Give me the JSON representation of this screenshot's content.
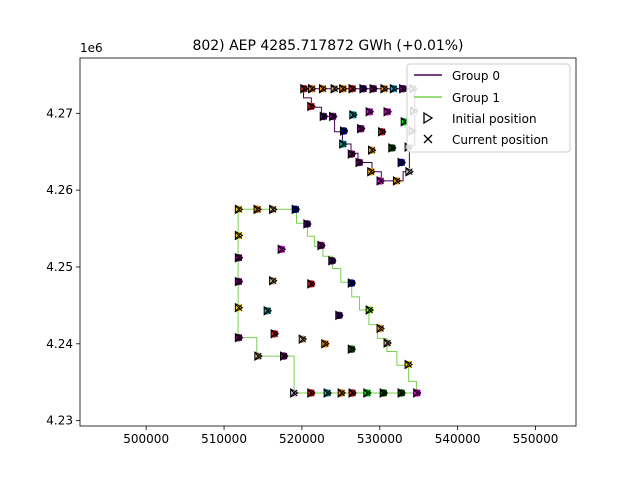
{
  "figure": {
    "title": "802) AEP 4285.717872 GWh (+0.01%)",
    "y_offset_label": "1e6"
  },
  "legend": {
    "placement": "top-right",
    "entries": [
      {
        "label": "Group 0",
        "kind": "line",
        "color": "#440154"
      },
      {
        "label": "Group 1",
        "kind": "line",
        "color": "#7ad151"
      },
      {
        "label": "Initial position",
        "kind": "marker-triangle",
        "color": "#000000"
      },
      {
        "label": "Current position",
        "kind": "marker-x",
        "color": "#000000"
      }
    ]
  },
  "chart_data": {
    "type": "scatter",
    "title": "802) AEP 4285.717872 GWh (+0.01%)",
    "xlabel": "",
    "ylabel": "",
    "xlim": [
      491500,
      555200
    ],
    "ylim": [
      4229300,
      4277200
    ],
    "x_ticks": [
      500000,
      510000,
      520000,
      530000,
      540000,
      550000
    ],
    "x_tick_labels": [
      "500000",
      "510000",
      "520000",
      "530000",
      "540000",
      "550000"
    ],
    "y_ticks": [
      4230000,
      4240000,
      4250000,
      4260000,
      4270000
    ],
    "y_tick_labels": [
      "4.23",
      "4.24",
      "4.25",
      "4.26",
      "4.27"
    ],
    "y_tick_multiplier": "1e6",
    "grid": false,
    "series": [
      {
        "name": "Group 0",
        "kind": "boundary-line",
        "color": "#440154",
        "points": [
          [
            520200,
            4273200
          ],
          [
            534500,
            4273200
          ],
          [
            534500,
            4265800
          ],
          [
            533800,
            4265800
          ],
          [
            533800,
            4262400
          ],
          [
            533000,
            4262400
          ],
          [
            533000,
            4261200
          ],
          [
            530200,
            4261200
          ],
          [
            530200,
            4262400
          ],
          [
            529000,
            4262400
          ],
          [
            529000,
            4263600
          ],
          [
            527200,
            4263600
          ],
          [
            527200,
            4264800
          ],
          [
            526300,
            4264800
          ],
          [
            526300,
            4266000
          ],
          [
            525200,
            4266000
          ],
          [
            525200,
            4267600
          ],
          [
            524200,
            4267600
          ],
          [
            524200,
            4269600
          ],
          [
            522500,
            4269600
          ],
          [
            522500,
            4270800
          ],
          [
            521200,
            4270800
          ],
          [
            521200,
            4272000
          ],
          [
            520200,
            4272000
          ],
          [
            520200,
            4273200
          ]
        ]
      },
      {
        "name": "Group 1",
        "kind": "boundary-line",
        "color": "#7ad151",
        "points": [
          [
            511800,
            4257500
          ],
          [
            519300,
            4257500
          ],
          [
            519300,
            4255700
          ],
          [
            520700,
            4255700
          ],
          [
            520700,
            4254000
          ],
          [
            521600,
            4254000
          ],
          [
            521600,
            4252700
          ],
          [
            522700,
            4252700
          ],
          [
            522700,
            4251400
          ],
          [
            523900,
            4251400
          ],
          [
            523900,
            4249800
          ],
          [
            525000,
            4249800
          ],
          [
            525000,
            4248000
          ],
          [
            526400,
            4248000
          ],
          [
            526400,
            4246100
          ],
          [
            527400,
            4246100
          ],
          [
            527400,
            4244400
          ],
          [
            528600,
            4244400
          ],
          [
            528600,
            4242500
          ],
          [
            529700,
            4242500
          ],
          [
            529700,
            4240700
          ],
          [
            530900,
            4240700
          ],
          [
            530900,
            4239000
          ],
          [
            532200,
            4239000
          ],
          [
            532200,
            4237200
          ],
          [
            533700,
            4237200
          ],
          [
            533700,
            4235100
          ],
          [
            534700,
            4235100
          ],
          [
            534700,
            4233600
          ],
          [
            519000,
            4233600
          ],
          [
            519000,
            4238400
          ],
          [
            514200,
            4238400
          ],
          [
            514200,
            4240800
          ],
          [
            511800,
            4240800
          ],
          [
            511800,
            4257500
          ]
        ]
      }
    ],
    "turbines": [
      {
        "x": 520300,
        "y": 4273200,
        "color": "#e41a1c"
      },
      {
        "x": 521300,
        "y": 4273200,
        "color": "#ff8c00"
      },
      {
        "x": 522700,
        "y": 4273200,
        "color": "#ffa500"
      },
      {
        "x": 524200,
        "y": 4273200,
        "color": "#d2b48c"
      },
      {
        "x": 525300,
        "y": 4273200,
        "color": "#ff8c00"
      },
      {
        "x": 526500,
        "y": 4273200,
        "color": "#e41a1c"
      },
      {
        "x": 527900,
        "y": 4273200,
        "color": "#4b0082"
      },
      {
        "x": 529200,
        "y": 4273200,
        "color": "#800080"
      },
      {
        "x": 530600,
        "y": 4273200,
        "color": "#ff8c00"
      },
      {
        "x": 531800,
        "y": 4273200,
        "color": "#00bfff"
      },
      {
        "x": 533000,
        "y": 4273200,
        "color": "#800080"
      },
      {
        "x": 534300,
        "y": 4273200,
        "color": "#d3d3d3"
      },
      {
        "x": 521200,
        "y": 4270900,
        "color": "#e41a1c"
      },
      {
        "x": 522800,
        "y": 4269600,
        "color": "#4b0082"
      },
      {
        "x": 524000,
        "y": 4269600,
        "color": "#800080"
      },
      {
        "x": 526600,
        "y": 4269800,
        "color": "#20b2aa"
      },
      {
        "x": 528700,
        "y": 4270200,
        "color": "#ff00ff"
      },
      {
        "x": 531000,
        "y": 4270200,
        "color": "#ff00ff"
      },
      {
        "x": 533200,
        "y": 4268900,
        "color": "#00ff00"
      },
      {
        "x": 534400,
        "y": 4270300,
        "color": "#d3d3d3"
      },
      {
        "x": 525400,
        "y": 4267700,
        "color": "#0000cd"
      },
      {
        "x": 527600,
        "y": 4268000,
        "color": "#800080"
      },
      {
        "x": 530300,
        "y": 4267600,
        "color": "#e41a1c"
      },
      {
        "x": 534200,
        "y": 4267700,
        "color": "#d3d3d3"
      },
      {
        "x": 525300,
        "y": 4266000,
        "color": "#20b2aa"
      },
      {
        "x": 526400,
        "y": 4264700,
        "color": "#800080"
      },
      {
        "x": 529000,
        "y": 4265200,
        "color": "#ffa500"
      },
      {
        "x": 531600,
        "y": 4265500,
        "color": "#006400"
      },
      {
        "x": 533700,
        "y": 4265600,
        "color": "#d3d3d3"
      },
      {
        "x": 527400,
        "y": 4263600,
        "color": "#800080"
      },
      {
        "x": 528900,
        "y": 4262400,
        "color": "#ffa500"
      },
      {
        "x": 532800,
        "y": 4263600,
        "color": "#0000cd"
      },
      {
        "x": 530100,
        "y": 4261200,
        "color": "#ff00ff"
      },
      {
        "x": 532200,
        "y": 4261200,
        "color": "#ffa500"
      },
      {
        "x": 533800,
        "y": 4262400,
        "color": "#d3d3d3"
      },
      {
        "x": 511900,
        "y": 4257500,
        "color": "#ffd700"
      },
      {
        "x": 514300,
        "y": 4257500,
        "color": "#ff8c00"
      },
      {
        "x": 516300,
        "y": 4257500,
        "color": "#d2b48c"
      },
      {
        "x": 519200,
        "y": 4257500,
        "color": "#0000cd"
      },
      {
        "x": 520700,
        "y": 4255600,
        "color": "#4b0082"
      },
      {
        "x": 511900,
        "y": 4254100,
        "color": "#ffd700"
      },
      {
        "x": 522500,
        "y": 4252800,
        "color": "#800080"
      },
      {
        "x": 517400,
        "y": 4252300,
        "color": "#ff00ff"
      },
      {
        "x": 511900,
        "y": 4251200,
        "color": "#800080"
      },
      {
        "x": 523900,
        "y": 4250800,
        "color": "#4b0082"
      },
      {
        "x": 511900,
        "y": 4248100,
        "color": "#800080"
      },
      {
        "x": 516300,
        "y": 4248200,
        "color": "#d2b48c"
      },
      {
        "x": 521200,
        "y": 4247800,
        "color": "#e41a1c"
      },
      {
        "x": 526400,
        "y": 4247900,
        "color": "#0000cd"
      },
      {
        "x": 511900,
        "y": 4244700,
        "color": "#ffd700"
      },
      {
        "x": 515600,
        "y": 4244300,
        "color": "#20b2aa"
      },
      {
        "x": 528700,
        "y": 4244400,
        "color": "#7fff00"
      },
      {
        "x": 524800,
        "y": 4243700,
        "color": "#4b0082"
      },
      {
        "x": 516500,
        "y": 4241300,
        "color": "#e41a1c"
      },
      {
        "x": 530100,
        "y": 4242000,
        "color": "#ffa500"
      },
      {
        "x": 511900,
        "y": 4240800,
        "color": "#800080"
      },
      {
        "x": 520100,
        "y": 4240600,
        "color": "#d2b48c"
      },
      {
        "x": 523000,
        "y": 4240000,
        "color": "#ff8c00"
      },
      {
        "x": 531000,
        "y": 4240100,
        "color": "#d2b48c"
      },
      {
        "x": 526400,
        "y": 4239300,
        "color": "#006400"
      },
      {
        "x": 514400,
        "y": 4238400,
        "color": "#d2b48c"
      },
      {
        "x": 517700,
        "y": 4238400,
        "color": "#800080"
      },
      {
        "x": 533700,
        "y": 4237300,
        "color": "#ffd700"
      },
      {
        "x": 519000,
        "y": 4233600,
        "color": "#d8bfd8"
      },
      {
        "x": 521200,
        "y": 4233600,
        "color": "#e41a1c"
      },
      {
        "x": 523300,
        "y": 4233600,
        "color": "#20b2aa"
      },
      {
        "x": 525100,
        "y": 4233600,
        "color": "#ff8c00"
      },
      {
        "x": 526500,
        "y": 4233600,
        "color": "#e41a1c"
      },
      {
        "x": 528400,
        "y": 4233600,
        "color": "#00ff00"
      },
      {
        "x": 530500,
        "y": 4233600,
        "color": "#006400"
      },
      {
        "x": 532800,
        "y": 4233600,
        "color": "#006400"
      },
      {
        "x": 534800,
        "y": 4233600,
        "color": "#ff00ff"
      }
    ]
  }
}
